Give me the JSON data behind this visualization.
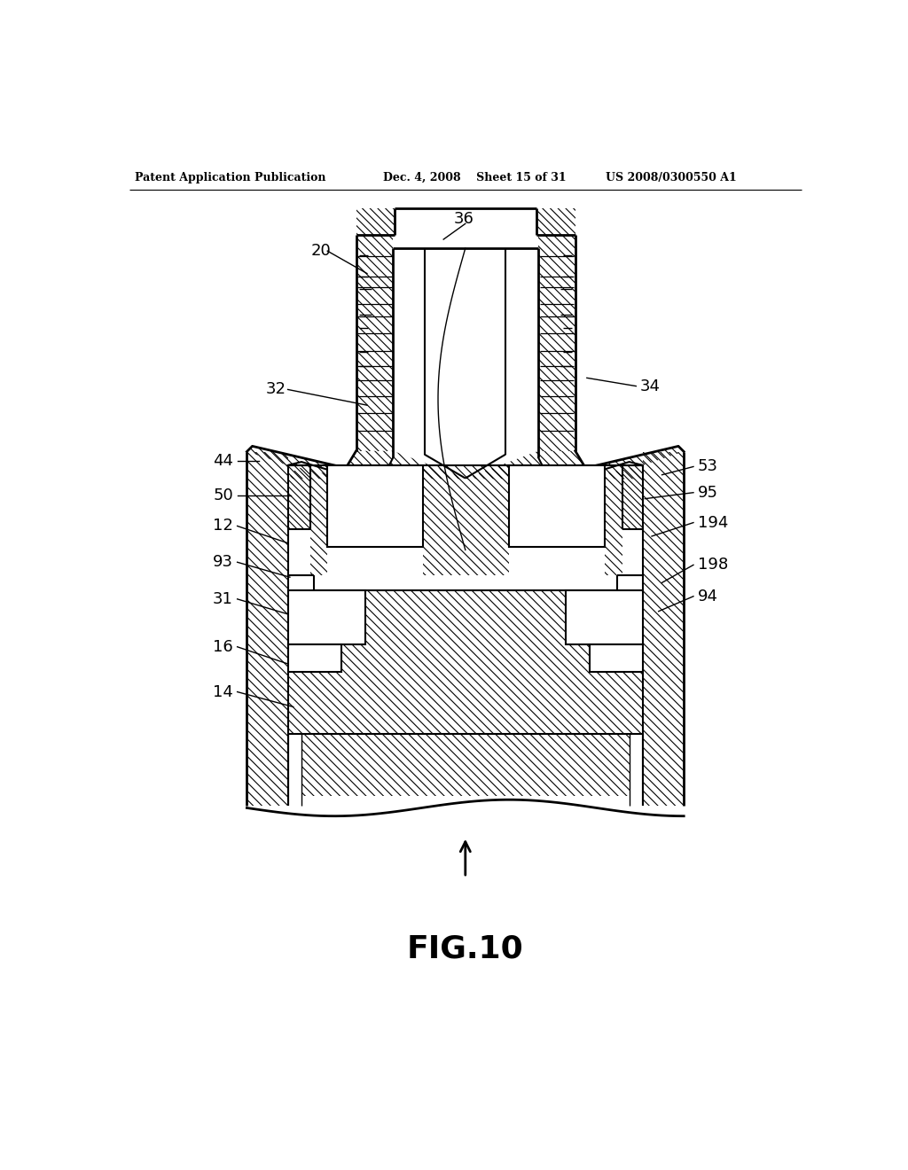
{
  "background_color": "#ffffff",
  "header_left": "Patent Application Publication",
  "header_center": "Dec. 4, 2008    Sheet 15 of 31",
  "header_right": "US 2008/0300550 A1",
  "figure_label": "FIG.10"
}
